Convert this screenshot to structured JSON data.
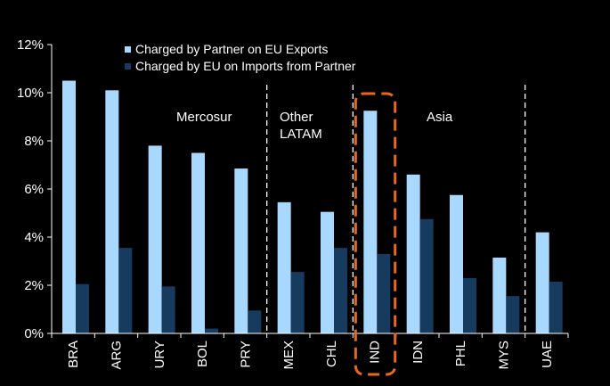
{
  "chart_data": {
    "type": "bar",
    "categories": [
      "BRA",
      "ARG",
      "URY",
      "BOL",
      "PRY",
      "MEX",
      "CHL",
      "IND",
      "IDN",
      "PHL",
      "MYS",
      "UAE"
    ],
    "series": [
      {
        "name": "Charged by Partner on EU Exports",
        "values": [
          10.5,
          10.1,
          7.8,
          7.5,
          6.85,
          5.45,
          5.05,
          9.25,
          6.6,
          5.75,
          3.15,
          4.2
        ],
        "color": "#a9d8ff"
      },
      {
        "name": "Charged by EU on Imports from Partner",
        "values": [
          2.05,
          3.55,
          1.95,
          0.2,
          0.95,
          2.55,
          3.55,
          3.3,
          4.75,
          2.3,
          1.55,
          2.15
        ],
        "color": "#163b5e"
      }
    ],
    "y_ticks": [
      "0%",
      "2%",
      "4%",
      "6%",
      "8%",
      "10%",
      "12%"
    ],
    "ylim": [
      0,
      12
    ],
    "grid": false,
    "legend_position": "top",
    "regions": [
      "Mercosur",
      "Other LATAM",
      "Asia"
    ],
    "region_separators_after": [
      "PRY",
      "CHL",
      "MYS"
    ],
    "highlighted_category": "IND",
    "highlight_color": "#e8671c",
    "text_color": "#ffffff",
    "background": "#000000"
  }
}
